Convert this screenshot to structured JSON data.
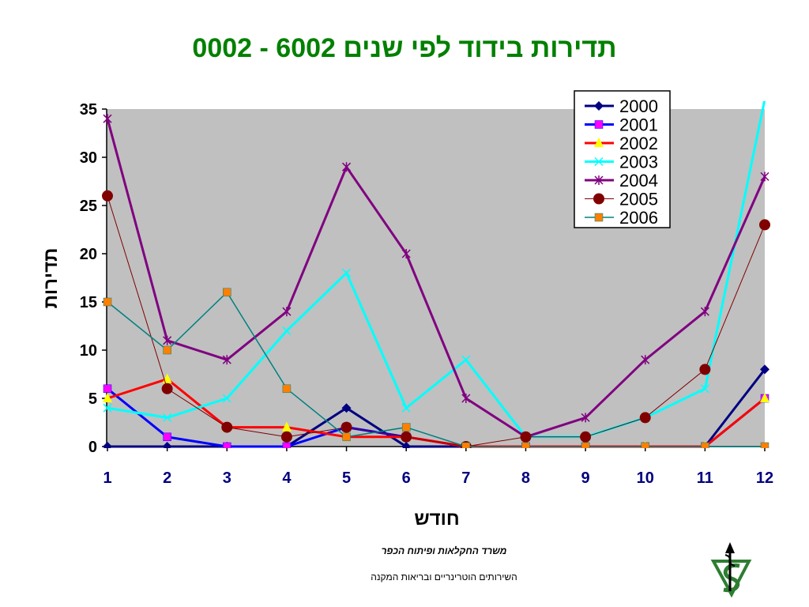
{
  "chart_data": {
    "type": "line",
    "title": "תדירות בידוד לפי שנים  6002 - 0002",
    "xlabel": "חודש",
    "ylabel": "תדירות",
    "categories": [
      "1",
      "2",
      "3",
      "4",
      "5",
      "6",
      "7",
      "8",
      "9",
      "10",
      "11",
      "12"
    ],
    "ylim": [
      0,
      35
    ],
    "yticks": [
      0,
      5,
      10,
      15,
      20,
      25,
      30,
      35
    ],
    "grid": false,
    "legend_position": "top-right",
    "series": [
      {
        "name": "2000",
        "color": "#000080",
        "marker": "diamond",
        "values": [
          0,
          0,
          0,
          0,
          4,
          0,
          0,
          0,
          0,
          0,
          0,
          8
        ]
      },
      {
        "name": "2001",
        "color": "#0000ff",
        "marker": "square",
        "marker_color": "#ff00ff",
        "values": [
          6,
          1,
          0,
          0,
          2,
          1,
          0,
          0,
          0,
          0,
          0,
          5
        ]
      },
      {
        "name": "2002",
        "color": "#ff0000",
        "marker": "triangle",
        "marker_color": "#ffff00",
        "values": [
          5,
          7,
          2,
          2,
          1,
          1,
          0,
          0,
          0,
          0,
          0,
          5
        ]
      },
      {
        "name": "2003",
        "color": "#00ffff",
        "marker": "x",
        "values": [
          4,
          3,
          5,
          12,
          18,
          4,
          9,
          1,
          1,
          3,
          6,
          36
        ]
      },
      {
        "name": "2004",
        "color": "#800080",
        "marker": "star",
        "values": [
          34,
          11,
          9,
          14,
          29,
          20,
          5,
          1,
          3,
          9,
          14,
          28
        ]
      },
      {
        "name": "2005",
        "color": "#800000",
        "marker": "circle",
        "values": [
          26,
          6,
          2,
          1,
          2,
          1,
          0,
          1,
          1,
          3,
          8,
          23
        ]
      },
      {
        "name": "2006",
        "color": "#008080",
        "marker": "square",
        "marker_color": "#ff8000",
        "values": [
          15,
          10,
          16,
          6,
          1,
          2,
          0,
          0,
          0,
          0,
          0,
          0
        ]
      }
    ]
  },
  "colors": {
    "title": "#008000",
    "plot_background": "#c0c0c0",
    "x_tick": "#000080"
  },
  "footer": {
    "ministry": "משרד החקלאות ופיתוח הכפר",
    "service": "השירותים הוטרינריים ובריאות המקנה"
  },
  "logo_icon": "veterinary-services-logo"
}
